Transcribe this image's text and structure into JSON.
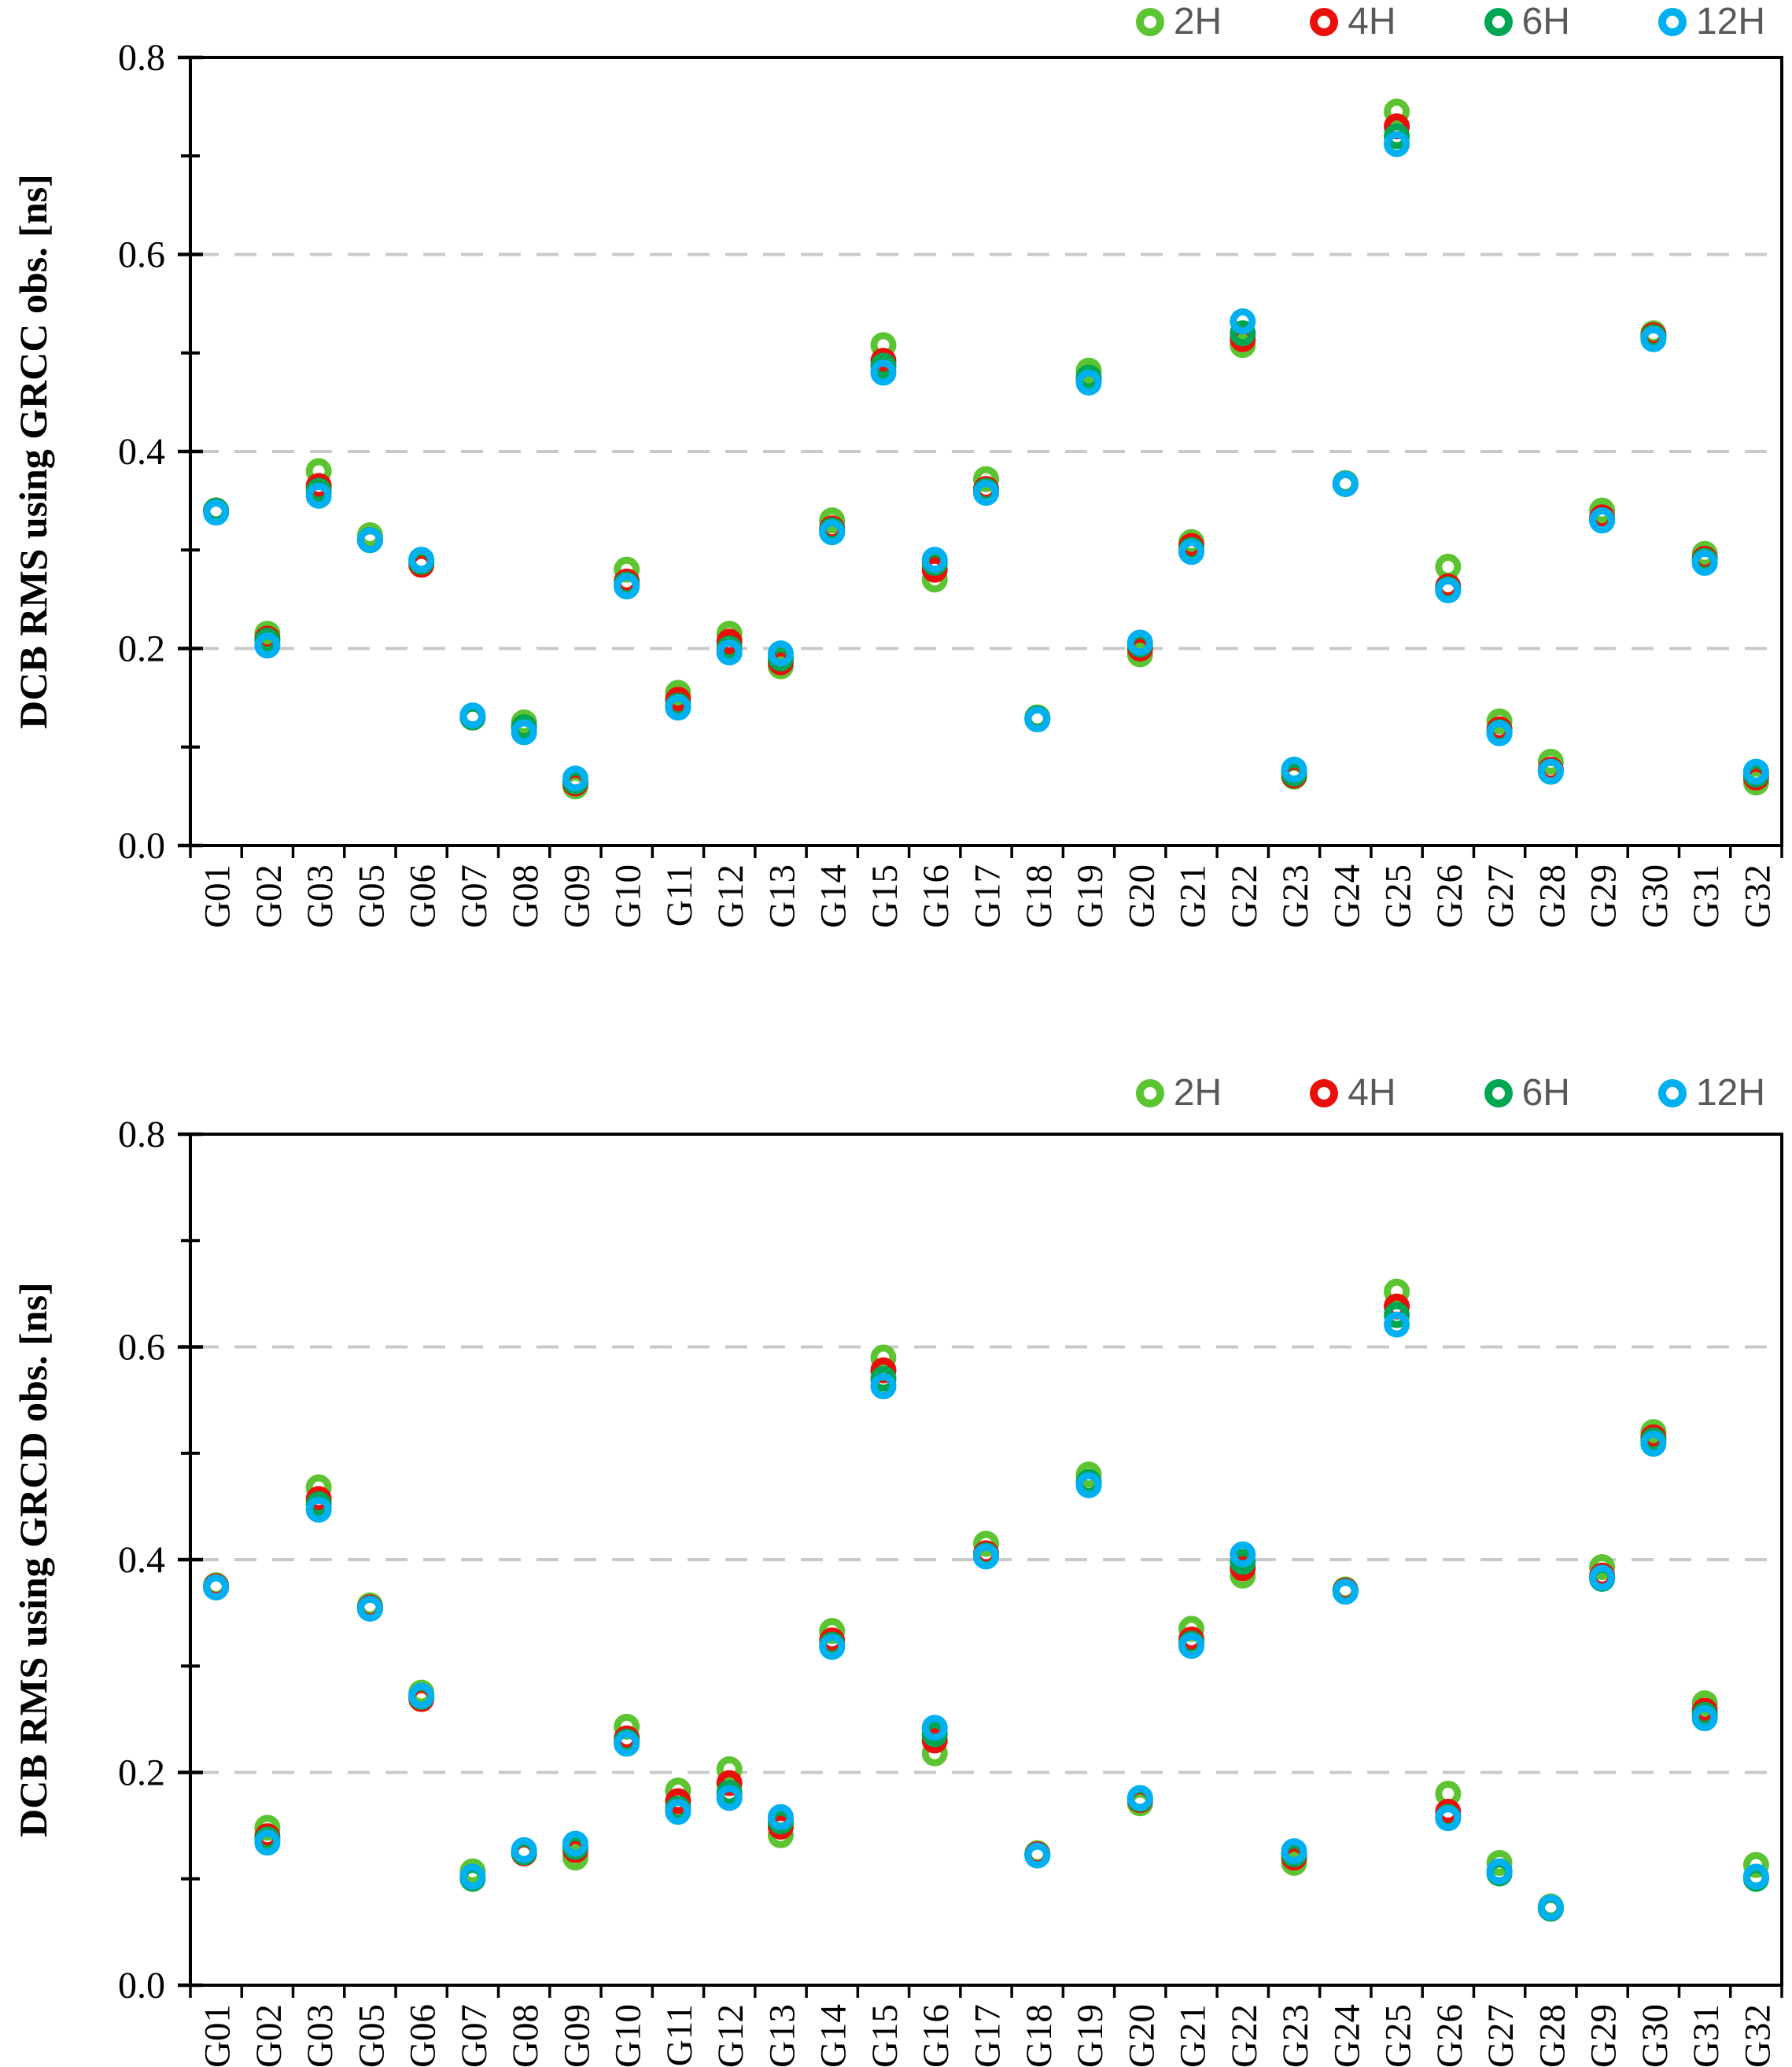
{
  "figure": {
    "background": "#ffffff",
    "axis_color": "#000000",
    "grid_color": "#c9c9c9",
    "legend": {
      "text_color": "#595959",
      "items": [
        {
          "label": "2H",
          "color": "#5cc431"
        },
        {
          "label": "4H",
          "color": "#e9100c"
        },
        {
          "label": "6H",
          "color": "#00a651"
        },
        {
          "label": "12H",
          "color": "#00b0f0"
        }
      ]
    }
  },
  "chart_data": [
    {
      "id": "grcc",
      "type": "scatter",
      "title": "",
      "ylabel": "DCB RMS using GRCC obs. [ns]",
      "xlabel": "",
      "ylim": [
        0.0,
        0.8
      ],
      "yticks": [
        "0.0",
        "0.2",
        "0.4",
        "0.6",
        "0.8"
      ],
      "minor_yticks": [
        0.1,
        0.3,
        0.5,
        0.7
      ],
      "gridlines": [
        0.2,
        0.4,
        0.6
      ],
      "grid_style": "dashed",
      "legend_position": "top-right",
      "marker": "open-circle",
      "categories": [
        "G01",
        "G02",
        "G03",
        "G05",
        "G06",
        "G07",
        "G08",
        "G09",
        "G10",
        "G11",
        "G12",
        "G13",
        "G14",
        "G15",
        "G16",
        "G17",
        "G18",
        "G19",
        "G20",
        "G21",
        "G22",
        "G23",
        "G24",
        "G25",
        "G26",
        "G27",
        "G28",
        "G29",
        "G30",
        "G31",
        "G32"
      ],
      "series": [
        {
          "name": "2H",
          "color": "#5cc431",
          "values": [
            0.34,
            0.215,
            0.38,
            0.315,
            0.29,
            0.13,
            0.125,
            0.06,
            0.28,
            0.155,
            0.215,
            0.182,
            0.33,
            0.508,
            0.27,
            0.372,
            0.13,
            0.482,
            0.194,
            0.308,
            0.508,
            0.07,
            0.368,
            0.745,
            0.283,
            0.126,
            0.085,
            0.34,
            0.52,
            0.296,
            0.064
          ]
        },
        {
          "name": "4H",
          "color": "#e9100c",
          "values": [
            0.34,
            0.21,
            0.365,
            0.31,
            0.285,
            0.13,
            0.12,
            0.063,
            0.268,
            0.148,
            0.207,
            0.186,
            0.322,
            0.492,
            0.28,
            0.362,
            0.129,
            0.474,
            0.2,
            0.304,
            0.514,
            0.071,
            0.367,
            0.73,
            0.263,
            0.118,
            0.077,
            0.333,
            0.518,
            0.291,
            0.069
          ]
        },
        {
          "name": "6H",
          "color": "#00a651",
          "values": [
            0.34,
            0.208,
            0.36,
            0.31,
            0.288,
            0.13,
            0.12,
            0.065,
            0.265,
            0.142,
            0.2,
            0.19,
            0.32,
            0.487,
            0.287,
            0.36,
            0.129,
            0.475,
            0.204,
            0.3,
            0.52,
            0.073,
            0.367,
            0.72,
            0.26,
            0.115,
            0.075,
            0.33,
            0.516,
            0.289,
            0.072
          ]
        },
        {
          "name": "12H",
          "color": "#00b0f0",
          "values": [
            0.338,
            0.203,
            0.355,
            0.31,
            0.29,
            0.132,
            0.115,
            0.068,
            0.263,
            0.14,
            0.196,
            0.195,
            0.318,
            0.48,
            0.29,
            0.358,
            0.128,
            0.47,
            0.206,
            0.298,
            0.532,
            0.077,
            0.367,
            0.712,
            0.259,
            0.114,
            0.075,
            0.33,
            0.514,
            0.287,
            0.075
          ]
        }
      ]
    },
    {
      "id": "grcd",
      "type": "scatter",
      "title": "",
      "ylabel": "DCB RMS using GRCD obs. [ns]",
      "xlabel": "",
      "ylim": [
        0.0,
        0.8
      ],
      "yticks": [
        "0.0",
        "0.2",
        "0.4",
        "0.6",
        "0.8"
      ],
      "minor_yticks": [
        0.1,
        0.3,
        0.5,
        0.7
      ],
      "gridlines": [
        0.2,
        0.4,
        0.6
      ],
      "grid_style": "dashed",
      "legend_position": "top-right",
      "marker": "open-circle",
      "categories": [
        "G01",
        "G02",
        "G03",
        "G05",
        "G06",
        "G07",
        "G08",
        "G09",
        "G10",
        "G11",
        "G12",
        "G13",
        "G14",
        "G15",
        "G16",
        "G17",
        "G18",
        "G19",
        "G20",
        "G21",
        "G22",
        "G23",
        "G24",
        "G25",
        "G26",
        "G27",
        "G28",
        "G29",
        "G30",
        "G31",
        "G32"
      ],
      "series": [
        {
          "name": "2H",
          "color": "#5cc431",
          "values": [
            0.376,
            0.148,
            0.468,
            0.357,
            0.275,
            0.107,
            0.124,
            0.12,
            0.243,
            0.183,
            0.203,
            0.141,
            0.333,
            0.59,
            0.218,
            0.415,
            0.124,
            0.48,
            0.171,
            0.335,
            0.385,
            0.115,
            0.372,
            0.652,
            0.18,
            0.115,
            0.074,
            0.393,
            0.52,
            0.265,
            0.113
          ]
        },
        {
          "name": "4H",
          "color": "#e9100c",
          "values": [
            0.375,
            0.14,
            0.457,
            0.355,
            0.269,
            0.101,
            0.124,
            0.127,
            0.232,
            0.173,
            0.19,
            0.149,
            0.324,
            0.578,
            0.23,
            0.406,
            0.123,
            0.472,
            0.174,
            0.325,
            0.392,
            0.12,
            0.371,
            0.638,
            0.163,
            0.107,
            0.072,
            0.385,
            0.515,
            0.258,
            0.101
          ]
        },
        {
          "name": "6H",
          "color": "#00a651",
          "values": [
            0.374,
            0.137,
            0.452,
            0.354,
            0.271,
            0.1,
            0.125,
            0.13,
            0.229,
            0.166,
            0.181,
            0.154,
            0.32,
            0.57,
            0.236,
            0.404,
            0.122,
            0.473,
            0.175,
            0.321,
            0.398,
            0.123,
            0.37,
            0.63,
            0.158,
            0.105,
            0.072,
            0.382,
            0.512,
            0.254,
            0.1
          ]
        },
        {
          "name": "12H",
          "color": "#00b0f0",
          "values": [
            0.374,
            0.134,
            0.447,
            0.354,
            0.272,
            0.102,
            0.127,
            0.133,
            0.227,
            0.163,
            0.176,
            0.158,
            0.318,
            0.563,
            0.242,
            0.403,
            0.122,
            0.47,
            0.176,
            0.319,
            0.405,
            0.126,
            0.37,
            0.621,
            0.157,
            0.107,
            0.073,
            0.383,
            0.509,
            0.251,
            0.102
          ]
        }
      ]
    }
  ]
}
